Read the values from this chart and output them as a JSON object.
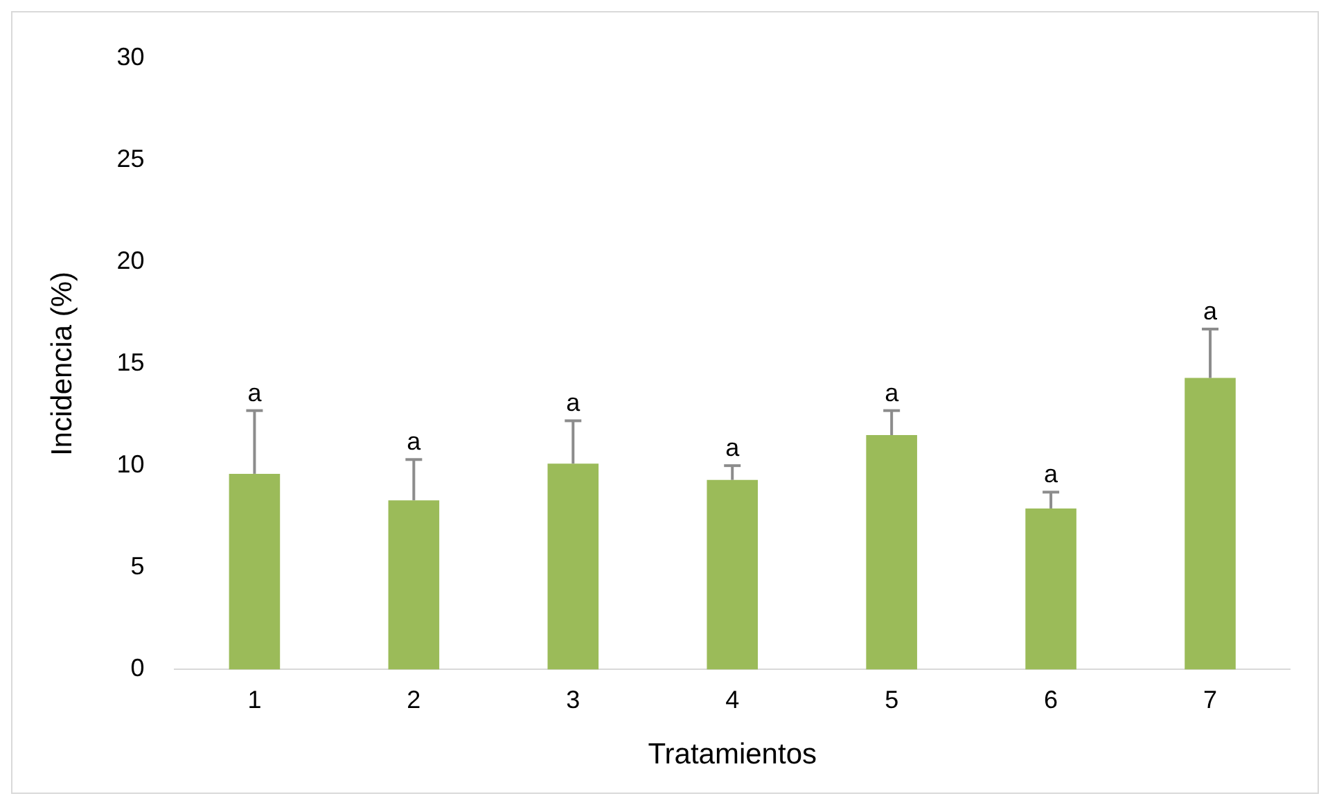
{
  "chart_data": {
    "type": "bar",
    "xlabel": "Tratamientos",
    "ylabel": "Incidencia (%)",
    "categories": [
      "1",
      "2",
      "3",
      "4",
      "5",
      "6",
      "7"
    ],
    "values": [
      9.6,
      8.3,
      10.1,
      9.3,
      11.5,
      7.9,
      14.3
    ],
    "errors": [
      [
        9.6,
        12.7
      ],
      [
        8.3,
        10.3
      ],
      [
        10.1,
        12.2
      ],
      [
        9.3,
        10.0
      ],
      [
        11.5,
        12.7
      ],
      [
        7.9,
        8.7
      ],
      [
        14.3,
        16.7
      ]
    ],
    "color": "#9bbb59",
    "ylim": [
      0,
      30
    ],
    "yticks": [
      0,
      5,
      10,
      15,
      20,
      25,
      30
    ],
    "grid": false,
    "legend": false,
    "annotations": [
      {
        "text": "a",
        "x": "1",
        "y": 9.6
      },
      {
        "text": "a",
        "x": "2",
        "y": 8.3
      },
      {
        "text": "a",
        "x": "3",
        "y": 10.1
      },
      {
        "text": "a",
        "x": "4",
        "y": 9.3
      },
      {
        "text": "a",
        "x": "5",
        "y": 11.5
      },
      {
        "text": "a",
        "x": "6",
        "y": 7.9
      },
      {
        "text": "a",
        "x": "7",
        "y": 14.3
      }
    ]
  }
}
